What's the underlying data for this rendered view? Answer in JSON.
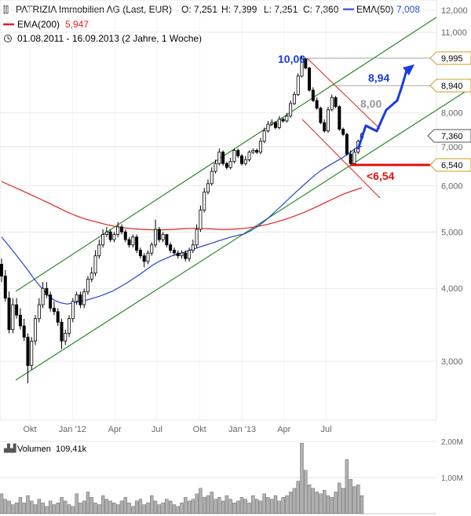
{
  "header": {
    "line1": {
      "name": "PATRIZIA Immobilien AG (Last, EUR)",
      "open": "O: 7,251",
      "high": "H: 7,399",
      "low": "L: 7,251",
      "close": "C: 7,360",
      "ema50_label": "EMA(50)",
      "ema50_value": "7,008"
    },
    "line2": {
      "ema200_label": "EMA(200)",
      "ema200_value": "5,947"
    },
    "line3": {
      "range": "01.08.2011 - 16.09.2013 (2 Jahre, 1 Woche)"
    }
  },
  "colors": {
    "candles": "#000000",
    "ema50": "#2244cc",
    "ema200": "#dd2222",
    "channel": "#2a8a2a",
    "wedge": "#dd2222",
    "forecast": "#1a3be0",
    "label_gold": "#c9a227",
    "volume": "#b0b0b0"
  },
  "chart_data": {
    "type": "candlestick",
    "y_scale": "log",
    "ylim": [
      2.6,
      12.6
    ],
    "yticks": [
      "3,000",
      "4,000",
      "5,000",
      "6,000",
      "7,000",
      "8,000",
      "11,000",
      "12,000"
    ],
    "ytick_values": [
      3,
      4,
      5,
      6,
      7,
      8,
      11,
      12
    ],
    "xticks": [
      "Okt",
      "Jan '12",
      "Apr",
      "Jul",
      "Okt",
      "Jan '13",
      "Apr",
      "Jul"
    ],
    "xtick_dates": [
      "2011-10-01",
      "2012-01-01",
      "2012-04-01",
      "2012-07-01",
      "2012-10-01",
      "2013-01-01",
      "2013-04-01",
      "2013-07-01"
    ],
    "x_range": [
      "2011-08-01",
      "2013-09-16"
    ],
    "close": [
      4.2,
      3.85,
      3.4,
      3.75,
      3.6,
      3.45,
      3.3,
      2.95,
      3.25,
      3.55,
      3.75,
      4.0,
      3.9,
      3.7,
      3.65,
      3.5,
      3.25,
      3.35,
      3.55,
      3.8,
      3.9,
      3.75,
      3.95,
      4.15,
      4.25,
      4.55,
      4.75,
      4.95,
      5.0,
      4.85,
      4.95,
      5.1,
      5.0,
      4.85,
      4.75,
      4.9,
      4.65,
      4.55,
      4.45,
      4.6,
      4.75,
      5.05,
      4.85,
      4.95,
      4.75,
      4.65,
      4.6,
      4.55,
      4.6,
      4.5,
      4.65,
      4.75,
      5.05,
      5.45,
      5.85,
      6.05,
      6.35,
      6.55,
      6.85,
      6.55,
      6.45,
      6.6,
      6.9,
      6.75,
      6.55,
      6.65,
      6.85,
      6.9,
      6.85,
      7.15,
      7.45,
      7.65,
      7.7,
      7.55,
      7.8,
      7.75,
      7.9,
      8.3,
      8.6,
      9.25,
      9.9,
      9.55,
      8.75,
      8.4,
      8.15,
      7.7,
      7.45,
      8.1,
      8.5,
      8.2,
      7.5,
      7.35,
      6.8,
      6.55,
      6.85,
      7.15,
      7.36
    ],
    "open": [
      4.4,
      4.2,
      3.85,
      3.4,
      3.75,
      3.6,
      3.45,
      3.3,
      2.95,
      3.25,
      3.55,
      3.75,
      4.0,
      3.9,
      3.7,
      3.65,
      3.5,
      3.25,
      3.35,
      3.55,
      3.8,
      3.9,
      3.75,
      3.95,
      4.15,
      4.25,
      4.55,
      4.75,
      4.95,
      5.0,
      4.85,
      4.95,
      5.1,
      5.0,
      4.85,
      4.75,
      4.9,
      4.65,
      4.55,
      4.45,
      4.6,
      4.75,
      5.05,
      4.85,
      4.95,
      4.75,
      4.65,
      4.6,
      4.55,
      4.6,
      4.5,
      4.65,
      4.75,
      5.05,
      5.45,
      5.85,
      6.05,
      6.35,
      6.55,
      6.85,
      6.55,
      6.45,
      6.6,
      6.9,
      6.75,
      6.55,
      6.65,
      6.85,
      6.9,
      6.85,
      7.15,
      7.45,
      7.65,
      7.7,
      7.55,
      7.8,
      7.75,
      7.9,
      8.3,
      8.6,
      9.25,
      9.9,
      9.55,
      8.75,
      8.4,
      8.15,
      7.7,
      7.45,
      8.1,
      8.5,
      8.2,
      7.5,
      7.35,
      6.8,
      6.55,
      6.85,
      7.251
    ],
    "high": [
      4.5,
      4.3,
      3.95,
      3.85,
      3.85,
      3.7,
      3.55,
      3.35,
      3.3,
      3.6,
      3.85,
      4.1,
      4.1,
      3.95,
      3.8,
      3.7,
      3.55,
      3.4,
      3.6,
      3.85,
      3.95,
      3.95,
      4.0,
      4.2,
      4.35,
      4.65,
      4.85,
      5.05,
      5.1,
      5.05,
      5.0,
      5.2,
      5.15,
      5.05,
      4.9,
      4.95,
      4.95,
      4.7,
      4.6,
      4.65,
      4.8,
      5.25,
      5.1,
      5.0,
      4.95,
      4.8,
      4.7,
      4.65,
      4.65,
      4.65,
      4.7,
      4.85,
      5.15,
      5.55,
      5.95,
      6.15,
      6.45,
      6.65,
      6.95,
      6.9,
      6.6,
      6.7,
      6.95,
      6.95,
      6.8,
      6.75,
      6.9,
      6.95,
      6.95,
      7.25,
      7.55,
      7.75,
      7.8,
      7.75,
      7.9,
      7.85,
      8.0,
      8.4,
      8.7,
      9.35,
      10.0,
      9.95,
      9.6,
      8.85,
      8.5,
      8.2,
      7.8,
      8.2,
      8.6,
      8.55,
      8.25,
      7.55,
      7.4,
      6.9,
      6.95,
      7.2,
      7.399
    ],
    "low": [
      4.1,
      3.8,
      3.35,
      3.35,
      3.55,
      3.4,
      3.25,
      2.75,
      2.9,
      3.2,
      3.5,
      3.7,
      3.85,
      3.65,
      3.6,
      3.45,
      3.15,
      3.2,
      3.3,
      3.5,
      3.75,
      3.7,
      3.7,
      3.9,
      4.1,
      4.2,
      4.5,
      4.7,
      4.9,
      4.8,
      4.8,
      4.9,
      4.95,
      4.8,
      4.7,
      4.7,
      4.6,
      4.5,
      4.35,
      4.4,
      4.55,
      4.7,
      4.8,
      4.8,
      4.7,
      4.6,
      4.55,
      4.5,
      4.5,
      4.45,
      4.45,
      4.6,
      4.7,
      5.0,
      5.4,
      5.8,
      6.0,
      6.3,
      6.5,
      6.5,
      6.4,
      6.4,
      6.55,
      6.7,
      6.5,
      6.5,
      6.6,
      6.8,
      6.8,
      6.8,
      7.1,
      7.4,
      7.6,
      7.5,
      7.5,
      7.7,
      7.7,
      7.85,
      8.25,
      8.55,
      9.2,
      9.5,
      8.7,
      8.35,
      8.1,
      7.65,
      7.4,
      7.4,
      8.05,
      8.15,
      7.45,
      7.3,
      6.75,
      6.5,
      6.5,
      6.8,
      7.251
    ],
    "ema50": [
      4.9,
      4.75,
      4.6,
      4.45,
      4.3,
      4.15,
      4.02,
      3.9,
      3.82,
      3.78,
      3.76,
      3.78,
      3.8,
      3.82,
      3.85,
      3.88,
      3.92,
      3.96,
      4.02,
      4.08,
      4.15,
      4.22,
      4.3,
      4.38,
      4.45,
      4.5,
      4.55,
      4.58,
      4.62,
      4.66,
      4.7,
      4.74,
      4.78,
      4.82,
      4.86,
      4.9,
      4.93,
      4.96,
      5.02,
      5.1,
      5.2,
      5.32,
      5.45,
      5.58,
      5.72,
      5.86,
      6.0,
      6.14,
      6.28,
      6.4,
      6.5,
      6.6,
      6.7,
      6.82,
      6.95,
      7.01
    ],
    "ema200": [
      6.1,
      6.0,
      5.9,
      5.8,
      5.7,
      5.6,
      5.5,
      5.4,
      5.32,
      5.25,
      5.2,
      5.15,
      5.11,
      5.08,
      5.06,
      5.05,
      5.04,
      5.04,
      5.05,
      5.06,
      5.07,
      5.07,
      5.06,
      5.05,
      5.05,
      5.06,
      5.08,
      5.11,
      5.15,
      5.2,
      5.26,
      5.33,
      5.41,
      5.5,
      5.6,
      5.7,
      5.8,
      5.88,
      5.95
    ],
    "annotations": {
      "peak_label": "10,00",
      "target1_label": "8,94",
      "target2_label": "8,00",
      "stop_label": "<6,54",
      "price_boxes": [
        "9,995",
        "8,940",
        "7,360",
        "6,540"
      ]
    }
  },
  "volume": {
    "label": "Volumen",
    "value": "109,41k",
    "yticks": [
      "2,00M",
      "1,00M"
    ],
    "ytick_values": [
      2.0,
      1.0
    ],
    "bars": [
      0.55,
      0.4,
      0.35,
      0.25,
      0.3,
      0.45,
      0.3,
      0.5,
      0.35,
      0.25,
      0.4,
      0.3,
      0.2,
      0.35,
      0.25,
      0.3,
      0.45,
      0.35,
      0.25,
      0.2,
      0.55,
      0.3,
      0.35,
      0.6,
      0.45,
      0.3,
      0.25,
      0.5,
      0.4,
      0.35,
      0.3,
      0.25,
      0.35,
      0.45,
      0.3,
      0.2,
      0.35,
      0.4,
      0.25,
      0.3,
      0.5,
      0.35,
      0.25,
      0.3,
      0.4,
      0.35,
      0.25,
      0.2,
      0.3,
      0.45,
      0.35,
      0.4,
      0.55,
      0.7,
      0.45,
      0.5,
      0.6,
      0.4,
      0.45,
      0.35,
      0.5,
      0.4,
      0.3,
      0.35,
      0.45,
      0.4,
      0.3,
      0.5,
      0.4,
      0.35,
      0.55,
      0.45,
      0.4,
      0.5,
      0.35,
      0.45,
      0.5,
      0.6,
      0.7,
      0.9,
      1.95,
      1.2,
      0.8,
      0.7,
      0.6,
      0.55,
      0.65,
      0.5,
      0.45,
      0.6,
      0.85,
      0.7,
      1.5,
      0.95,
      0.75,
      0.8,
      0.5
    ]
  }
}
